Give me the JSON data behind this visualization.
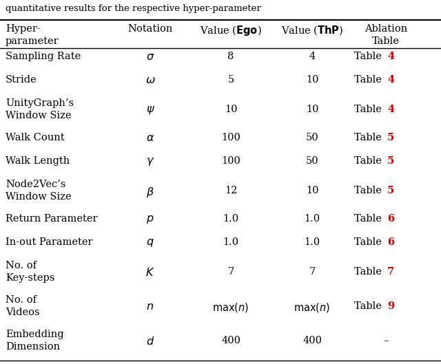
{
  "caption": "quantitative results for the respective hyper-parameter",
  "rows": [
    {
      "name": "Sampling Rate",
      "name2": null,
      "notation": "$\\sigma$",
      "ego": "8",
      "thp": "4",
      "tbl": "4"
    },
    {
      "name": "Stride",
      "name2": null,
      "notation": "$\\omega$",
      "ego": "5",
      "thp": "10",
      "tbl": "4"
    },
    {
      "name": "UnityGraph’s",
      "name2": "Window Size",
      "notation": "$\\psi$",
      "ego": "10",
      "thp": "10",
      "tbl": "4"
    },
    {
      "name": "Walk Count",
      "name2": null,
      "notation": "$\\alpha$",
      "ego": "100",
      "thp": "50",
      "tbl": "5"
    },
    {
      "name": "Walk Length",
      "name2": null,
      "notation": "$\\gamma$",
      "ego": "100",
      "thp": "50",
      "tbl": "5"
    },
    {
      "name": "Node2Vec’s",
      "name2": "Window Size",
      "notation": "$\\beta$",
      "ego": "12",
      "thp": "10",
      "tbl": "5"
    },
    {
      "name": "Return Parameter",
      "name2": null,
      "notation": "$p$",
      "ego": "1.0",
      "thp": "1.0",
      "tbl": "6"
    },
    {
      "name": "In-out Parameter",
      "name2": null,
      "notation": "$q$",
      "ego": "1.0",
      "thp": "1.0",
      "tbl": "6"
    },
    {
      "name": "No. of",
      "name2": "Key-steps",
      "notation": "$K$",
      "ego": "7",
      "thp": "7",
      "tbl": "7"
    },
    {
      "name": "No. of",
      "name2": "Videos",
      "notation": "$n$",
      "ego": "$\\max(n)$",
      "thp": "$\\max(n)$",
      "tbl": "9"
    },
    {
      "name": "Embedding",
      "name2": "Dimension",
      "notation": "$d$",
      "ego": "400",
      "thp": "400",
      "tbl": "-"
    }
  ],
  "red": "#cc0000",
  "black": "#000000",
  "white": "#ffffff",
  "fs": 10.5,
  "fs_small": 10.0
}
